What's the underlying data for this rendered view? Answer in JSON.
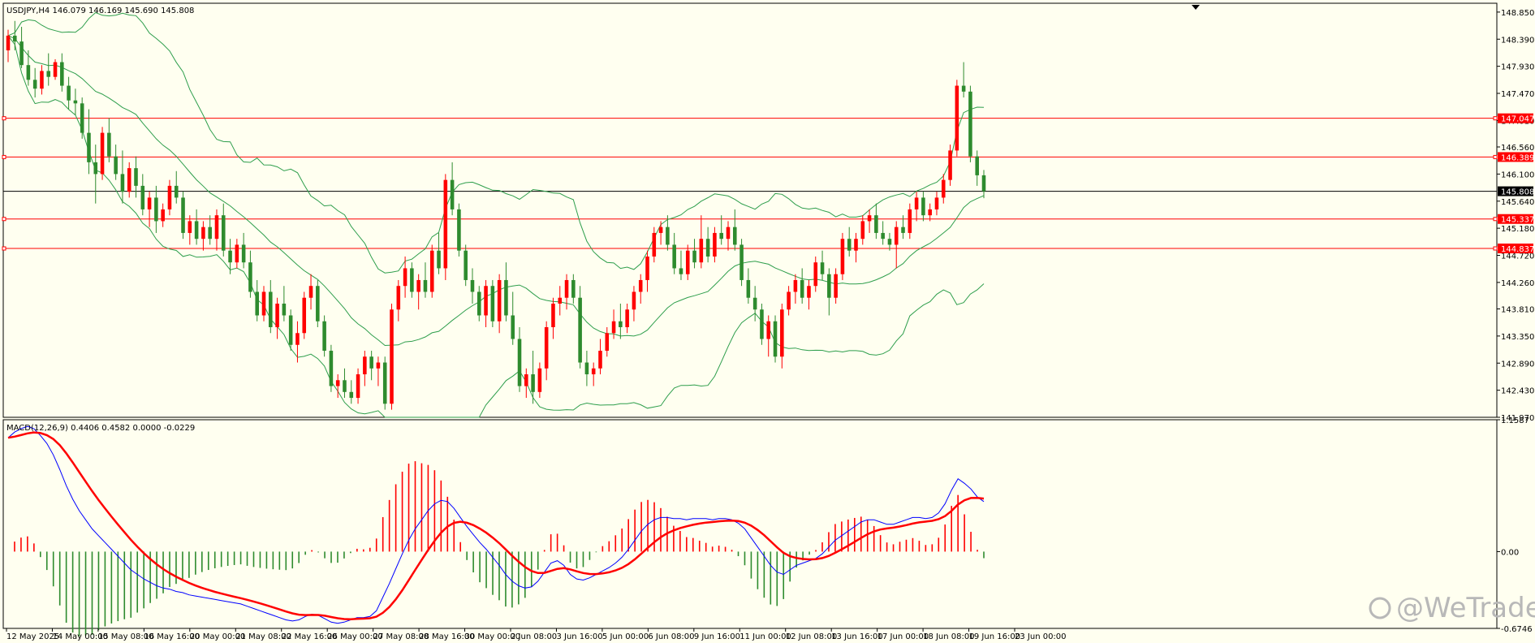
{
  "chart_data": [
    {
      "type": "candlestick",
      "header": "USDJPY,H4  146.079 146.169 145.690 145.808",
      "symbol": "USDJPY",
      "timeframe": "H4",
      "ohlc_last": {
        "open": 146.079,
        "high": 146.169,
        "low": 145.69,
        "close": 145.808
      },
      "ylim": [
        141.97,
        149.0
      ],
      "y_ticks": [
        "148.850",
        "148.390",
        "147.930",
        "147.470",
        "147.010",
        "146.560",
        "146.100",
        "145.640",
        "145.180",
        "144.720",
        "144.260",
        "143.810",
        "143.350",
        "142.890",
        "142.430",
        "141.970"
      ],
      "x_ticks": [
        "12 May 2025",
        "14 May 00:00",
        "15 May 08:00",
        "16 May 16:00",
        "20 May 00:00",
        "21 May 08:00",
        "22 May 16:00",
        "26 May 00:00",
        "27 May 08:00",
        "28 May 16:00",
        "30 May 00:00",
        "2 Jun 08:00",
        "3 Jun 16:00",
        "5 Jun 00:00",
        "6 Jun 08:00",
        "9 Jun 16:00",
        "11 Jun 00:00",
        "12 Jun 08:00",
        "13 Jun 16:00",
        "17 Jun 00:00",
        "18 Jun 08:00",
        "19 Jun 16:00",
        "23 Jun 00:00"
      ],
      "current_price": {
        "value": 145.808,
        "label": "145.808",
        "color": "#000000"
      },
      "horizontal_levels": [
        {
          "value": 147.047,
          "label": "147.047",
          "color": "#ff0000"
        },
        {
          "value": 146.389,
          "label": "146.389",
          "color": "#ff0000"
        },
        {
          "value": 145.337,
          "label": "145.337",
          "color": "#ff0000"
        },
        {
          "value": 144.837,
          "label": "144.837",
          "color": "#ff0000"
        }
      ],
      "candles": [
        [
          148.2,
          148.55,
          148.0,
          148.45
        ],
        [
          148.45,
          148.7,
          148.2,
          148.35
        ],
        [
          148.35,
          148.6,
          147.9,
          147.95
        ],
        [
          147.95,
          148.2,
          147.6,
          147.7
        ],
        [
          147.7,
          147.9,
          147.4,
          147.55
        ],
        [
          147.55,
          147.95,
          147.45,
          147.85
        ],
        [
          147.85,
          148.15,
          147.6,
          147.75
        ],
        [
          147.75,
          148.05,
          147.7,
          148.0
        ],
        [
          148.0,
          148.15,
          147.5,
          147.6
        ],
        [
          147.6,
          147.75,
          147.2,
          147.35
        ],
        [
          147.35,
          147.55,
          147.1,
          147.3
        ],
        [
          147.3,
          147.4,
          146.7,
          146.8
        ],
        [
          146.8,
          147.2,
          146.1,
          146.3
        ],
        [
          146.3,
          146.6,
          145.6,
          146.1
        ],
        [
          146.1,
          146.9,
          146.0,
          146.8
        ],
        [
          146.8,
          147.05,
          146.3,
          146.4
        ],
        [
          146.4,
          146.6,
          146.0,
          146.1
        ],
        [
          146.1,
          146.5,
          145.6,
          145.8
        ],
        [
          145.8,
          146.3,
          145.7,
          146.2
        ],
        [
          146.2,
          146.4,
          145.7,
          145.9
        ],
        [
          145.9,
          146.1,
          145.4,
          145.5
        ],
        [
          145.5,
          145.8,
          145.2,
          145.7
        ],
        [
          145.7,
          145.9,
          145.1,
          145.3
        ],
        [
          145.3,
          145.6,
          145.2,
          145.5
        ],
        [
          145.5,
          146.0,
          145.4,
          145.9
        ],
        [
          145.9,
          146.15,
          145.6,
          145.7
        ],
        [
          145.7,
          145.8,
          145.0,
          145.1
        ],
        [
          145.1,
          145.4,
          144.9,
          145.3
        ],
        [
          145.3,
          145.5,
          144.9,
          145.0
        ],
        [
          145.0,
          145.3,
          144.8,
          145.2
        ],
        [
          145.2,
          145.4,
          144.9,
          145.0
        ],
        [
          145.0,
          145.5,
          144.8,
          145.4
        ],
        [
          145.4,
          145.6,
          144.7,
          144.8
        ],
        [
          144.8,
          145.0,
          144.4,
          144.6
        ],
        [
          144.6,
          145.0,
          144.5,
          144.9
        ],
        [
          144.9,
          145.1,
          144.5,
          144.6
        ],
        [
          144.6,
          144.8,
          144.0,
          144.1
        ],
        [
          144.1,
          144.3,
          143.6,
          143.7
        ],
        [
          143.7,
          144.2,
          143.6,
          144.1
        ],
        [
          144.1,
          144.3,
          143.4,
          143.5
        ],
        [
          143.5,
          144.0,
          143.3,
          143.9
        ],
        [
          143.9,
          144.2,
          143.6,
          143.7
        ],
        [
          143.7,
          143.8,
          143.1,
          143.2
        ],
        [
          143.2,
          143.6,
          142.9,
          143.4
        ],
        [
          143.4,
          144.1,
          143.3,
          144.0
        ],
        [
          144.0,
          144.4,
          143.8,
          144.2
        ],
        [
          144.2,
          144.3,
          143.5,
          143.6
        ],
        [
          143.6,
          143.7,
          143.0,
          143.1
        ],
        [
          143.1,
          143.2,
          142.4,
          142.5
        ],
        [
          142.5,
          142.7,
          142.3,
          142.6
        ],
        [
          142.6,
          142.8,
          142.3,
          142.4
        ],
        [
          142.4,
          142.6,
          142.2,
          142.3
        ],
        [
          142.3,
          142.8,
          142.2,
          142.7
        ],
        [
          142.7,
          143.1,
          142.5,
          143.0
        ],
        [
          143.0,
          143.1,
          142.6,
          142.8
        ],
        [
          142.8,
          143.0,
          142.5,
          142.9
        ],
        [
          142.9,
          143.0,
          142.1,
          142.2
        ],
        [
          142.2,
          143.9,
          142.1,
          143.8
        ],
        [
          143.8,
          144.3,
          143.6,
          144.2
        ],
        [
          144.2,
          144.7,
          144.0,
          144.5
        ],
        [
          144.5,
          144.6,
          144.0,
          144.1
        ],
        [
          144.1,
          144.4,
          143.8,
          144.3
        ],
        [
          144.3,
          144.6,
          144.0,
          144.1
        ],
        [
          144.1,
          144.9,
          144.0,
          144.8
        ],
        [
          144.8,
          145.1,
          144.4,
          144.5
        ],
        [
          144.5,
          146.1,
          144.3,
          146.0
        ],
        [
          146.0,
          146.3,
          145.4,
          145.5
        ],
        [
          145.5,
          145.6,
          144.7,
          144.8
        ],
        [
          144.8,
          144.9,
          144.2,
          144.3
        ],
        [
          144.3,
          144.5,
          143.9,
          144.1
        ],
        [
          144.1,
          144.2,
          143.6,
          143.7
        ],
        [
          143.7,
          144.3,
          143.5,
          144.2
        ],
        [
          144.2,
          144.3,
          143.5,
          143.6
        ],
        [
          143.6,
          144.4,
          143.4,
          144.3
        ],
        [
          144.3,
          144.6,
          143.6,
          143.7
        ],
        [
          143.7,
          144.1,
          143.2,
          143.3
        ],
        [
          143.3,
          143.5,
          142.4,
          142.5
        ],
        [
          142.5,
          142.8,
          142.3,
          142.7
        ],
        [
          142.7,
          143.1,
          142.2,
          142.4
        ],
        [
          142.4,
          142.9,
          142.3,
          142.8
        ],
        [
          142.8,
          143.6,
          142.6,
          143.5
        ],
        [
          143.5,
          144.0,
          143.3,
          143.9
        ],
        [
          143.9,
          144.2,
          143.7,
          144.0
        ],
        [
          144.0,
          144.4,
          143.8,
          144.3
        ],
        [
          144.3,
          144.4,
          143.9,
          144.0
        ],
        [
          144.0,
          144.2,
          142.8,
          142.9
        ],
        [
          142.9,
          143.1,
          142.5,
          142.7
        ],
        [
          142.7,
          142.9,
          142.5,
          142.8
        ],
        [
          142.8,
          143.3,
          142.7,
          143.1
        ],
        [
          143.1,
          143.5,
          143.0,
          143.4
        ],
        [
          143.4,
          143.8,
          143.3,
          143.6
        ],
        [
          143.6,
          143.9,
          143.3,
          143.5
        ],
        [
          143.5,
          143.9,
          143.4,
          143.8
        ],
        [
          143.8,
          144.2,
          143.6,
          144.1
        ],
        [
          144.1,
          144.4,
          143.9,
          144.3
        ],
        [
          144.3,
          144.8,
          144.1,
          144.7
        ],
        [
          144.7,
          145.2,
          144.6,
          145.1
        ],
        [
          145.1,
          145.3,
          144.9,
          145.2
        ],
        [
          145.2,
          145.4,
          144.8,
          144.9
        ],
        [
          144.9,
          145.1,
          144.4,
          144.5
        ],
        [
          144.5,
          144.8,
          144.3,
          144.4
        ],
        [
          144.4,
          144.9,
          144.3,
          144.8
        ],
        [
          144.8,
          145.0,
          144.5,
          144.6
        ],
        [
          144.6,
          145.4,
          144.5,
          145.0
        ],
        [
          145.0,
          145.2,
          144.6,
          144.7
        ],
        [
          144.7,
          145.2,
          144.6,
          145.1
        ],
        [
          145.1,
          145.4,
          144.9,
          145.0
        ],
        [
          145.0,
          145.3,
          144.8,
          145.2
        ],
        [
          145.2,
          145.5,
          144.8,
          144.9
        ],
        [
          144.9,
          145.0,
          144.2,
          144.3
        ],
        [
          144.3,
          144.5,
          143.9,
          144.0
        ],
        [
          144.0,
          144.2,
          143.6,
          143.8
        ],
        [
          143.8,
          143.9,
          143.2,
          143.3
        ],
        [
          143.3,
          143.7,
          143.0,
          143.6
        ],
        [
          143.6,
          143.7,
          142.9,
          143.0
        ],
        [
          143.0,
          143.9,
          142.8,
          143.8
        ],
        [
          143.8,
          144.2,
          143.7,
          144.1
        ],
        [
          144.1,
          144.4,
          143.9,
          144.3
        ],
        [
          144.3,
          144.5,
          143.9,
          144.0
        ],
        [
          144.0,
          144.3,
          143.8,
          144.2
        ],
        [
          144.2,
          144.7,
          144.1,
          144.6
        ],
        [
          144.6,
          144.8,
          144.3,
          144.4
        ],
        [
          144.4,
          144.5,
          143.7,
          144.0
        ],
        [
          144.0,
          144.5,
          143.9,
          144.4
        ],
        [
          144.4,
          145.1,
          144.3,
          145.0
        ],
        [
          145.0,
          145.2,
          144.7,
          144.8
        ],
        [
          144.8,
          145.1,
          144.6,
          145.0
        ],
        [
          145.0,
          145.4,
          144.9,
          145.3
        ],
        [
          145.3,
          145.5,
          145.1,
          145.4
        ],
        [
          145.4,
          145.6,
          145.0,
          145.1
        ],
        [
          145.1,
          145.3,
          144.9,
          145.0
        ],
        [
          145.0,
          145.1,
          144.8,
          144.9
        ],
        [
          144.9,
          145.3,
          144.5,
          145.2
        ],
        [
          145.2,
          145.4,
          145.0,
          145.1
        ],
        [
          145.1,
          145.6,
          145.0,
          145.5
        ],
        [
          145.5,
          145.8,
          145.3,
          145.7
        ],
        [
          145.7,
          145.8,
          145.3,
          145.4
        ],
        [
          145.4,
          145.6,
          145.3,
          145.5
        ],
        [
          145.5,
          145.8,
          145.4,
          145.7
        ],
        [
          145.7,
          146.1,
          145.6,
          146.0
        ],
        [
          146.0,
          146.6,
          145.9,
          146.5
        ],
        [
          146.5,
          147.7,
          146.4,
          147.6
        ],
        [
          147.6,
          148.0,
          147.4,
          147.5
        ],
        [
          147.5,
          147.6,
          146.3,
          146.4
        ],
        [
          146.4,
          146.5,
          145.9,
          146.079
        ],
        [
          146.079,
          146.169,
          145.69,
          145.808
        ]
      ]
    },
    {
      "type": "macd",
      "header": "MACD(12,26,9) 0.4406 0.4582 0.0000 -0.0229",
      "params": "12,26,9",
      "values": {
        "histogram": 0.4406,
        "signal": 0.4582,
        "extra": [
          0.0,
          -0.0229
        ]
      },
      "ylim": [
        -0.6746,
        1.1587
      ],
      "y_ticks": [
        "1.1587",
        "0.00",
        "-0.6746"
      ],
      "macd_line": [
        1.0,
        1.05,
        1.08,
        1.1,
        1.08,
        1.02,
        0.95,
        0.85,
        0.72,
        0.58,
        0.46,
        0.36,
        0.28,
        0.2,
        0.14,
        0.08,
        0.02,
        -0.04,
        -0.1,
        -0.16,
        -0.2,
        -0.24,
        -0.27,
        -0.3,
        -0.32,
        -0.33,
        -0.35,
        -0.36,
        -0.38,
        -0.39,
        -0.4,
        -0.41,
        -0.42,
        -0.43,
        -0.44,
        -0.45,
        -0.46,
        -0.48,
        -0.5,
        -0.52,
        -0.54,
        -0.56,
        -0.58,
        -0.6,
        -0.61,
        -0.6,
        -0.57,
        -0.55,
        -0.56,
        -0.59,
        -0.62,
        -0.63,
        -0.62,
        -0.6,
        -0.58,
        -0.58,
        -0.57,
        -0.52,
        -0.4,
        -0.28,
        -0.15,
        -0.02,
        0.1,
        0.2,
        0.28,
        0.36,
        0.42,
        0.45,
        0.44,
        0.38,
        0.3,
        0.22,
        0.15,
        0.08,
        0.02,
        -0.05,
        -0.12,
        -0.2,
        -0.26,
        -0.3,
        -0.32,
        -0.31,
        -0.26,
        -0.18,
        -0.1,
        -0.08,
        -0.12,
        -0.2,
        -0.24,
        -0.25,
        -0.23,
        -0.2,
        -0.17,
        -0.14,
        -0.1,
        -0.05,
        0.02,
        0.1,
        0.18,
        0.24,
        0.28,
        0.3,
        0.3,
        0.29,
        0.29,
        0.28,
        0.29,
        0.29,
        0.29,
        0.28,
        0.29,
        0.29,
        0.28,
        0.25,
        0.2,
        0.12,
        0.04,
        -0.04,
        -0.12,
        -0.18,
        -0.2,
        -0.16,
        -0.12,
        -0.1,
        -0.08,
        -0.06,
        -0.02,
        0.04,
        0.1,
        0.14,
        0.18,
        0.22,
        0.26,
        0.28,
        0.28,
        0.26,
        0.24,
        0.24,
        0.26,
        0.28,
        0.3,
        0.3,
        0.29,
        0.3,
        0.34,
        0.42,
        0.54,
        0.64,
        0.6,
        0.55,
        0.48,
        0.44
      ]
    }
  ],
  "watermark": "@WeTrade",
  "colors": {
    "background": "#fffff0",
    "bull": "#ff0000",
    "bear": "#2e8b2e",
    "bands": "#2e9e4c",
    "macd": "#0000ff",
    "signal": "#ff0000"
  }
}
